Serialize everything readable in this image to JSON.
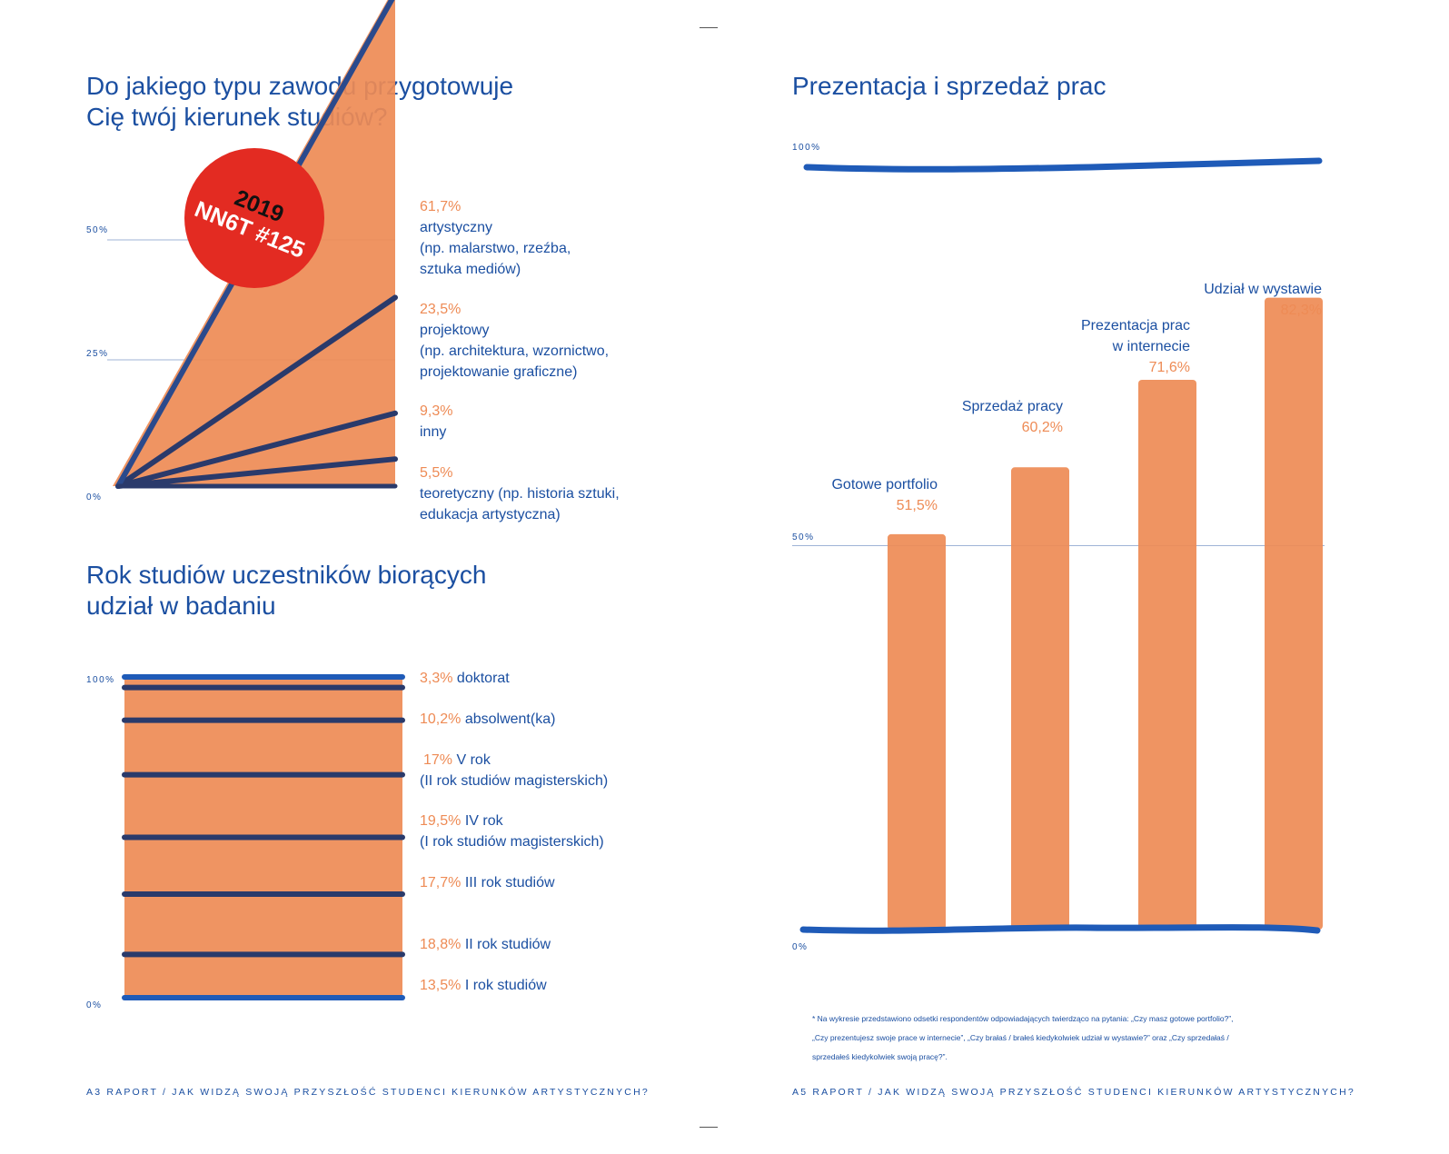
{
  "left_page": {
    "chart1": {
      "title_line1": "Do jakiego typu zawodu przygotowuje",
      "title_line2": "Cię twój kierunek studiów?",
      "axis": [
        "50%",
        "25%",
        "0%"
      ],
      "stamp_line1": "2019",
      "stamp_line2": "NN6T #125",
      "legend": [
        {
          "pct": "61,7%",
          "lines": [
            "artystyczny",
            "(np. malarstwo, rzeźba,",
            "sztuka mediów)"
          ]
        },
        {
          "pct": "23,5%",
          "lines": [
            "projektowy",
            "(np. architektura, wzornictwo,",
            "projektowanie graficzne)"
          ]
        },
        {
          "pct": "9,3%",
          "lines": [
            "inny"
          ]
        },
        {
          "pct": "5,5%",
          "lines": [
            "teoretyczny (np. historia sztuki,",
            "edukacja artystyczna)"
          ]
        }
      ]
    },
    "chart2": {
      "title_line1": "Rok studiów uczestników biorących",
      "title_line2": "udział w badaniu",
      "axis": [
        "100%",
        "0%"
      ],
      "legend": [
        {
          "pct": "3,3%",
          "lines": [
            "doktorat"
          ]
        },
        {
          "pct": "10,2%",
          "lines": [
            "absolwent(ka)"
          ]
        },
        {
          "pct": "17%",
          "lines": [
            "V rok",
            "(II rok studiów magisterskich)"
          ]
        },
        {
          "pct": "19,5%",
          "lines": [
            "IV rok",
            "(I rok studiów magisterskich)"
          ]
        },
        {
          "pct": "17,7%",
          "lines": [
            "III rok studiów"
          ]
        },
        {
          "pct": "18,8%",
          "lines": [
            "II rok studiów"
          ]
        },
        {
          "pct": "13,5%",
          "lines": [
            "I rok studiów"
          ]
        }
      ]
    },
    "footer": "A3 RAPORT / JAK WIDZĄ SWOJĄ PRZYSZŁOŚĆ STUDENCI KIERUNKÓW ARTYSTYCZNYCH?"
  },
  "right_page": {
    "chart3": {
      "title": "Prezentacja i sprzedaż prac",
      "axis": [
        "100%",
        "50%",
        "0%"
      ],
      "bars": [
        {
          "label_lines": [
            "Gotowe portfolio"
          ],
          "pct": "51,5%"
        },
        {
          "label_lines": [
            "Sprzedaż pracy"
          ],
          "pct": "60,2%"
        },
        {
          "label_lines": [
            "Prezentacja prac",
            "w internecie"
          ],
          "pct": "71,6%"
        },
        {
          "label_lines": [
            "Udział w wystawie"
          ],
          "pct": "82,3%"
        }
      ]
    },
    "note_lines": [
      "* Na wykresie przedstawiono odsetki respondentów odpowiadających twierdząco na pytania: „Czy masz gotowe portfolio?”,",
      "„Czy prezentujesz swoje prace w internecie”, „Czy brałaś / brałeś kiedykolwiek udział w wystawie?” oraz „Czy sprzedałaś /",
      "sprzedałeś kiedykolwiek swoją pracę?”."
    ],
    "footer": "A5 RAPORT / JAK WIDZĄ SWOJĄ PRZYSZŁOŚĆ STUDENCI KIERUNKÓW ARTYSTYCZNYCH?"
  },
  "chart_data": [
    {
      "type": "area",
      "title": "Do jakiego typu zawodu przygotowuje Cię twój kierunek studiów?",
      "categories": [
        "artystyczny",
        "projektowy",
        "inny",
        "teoretyczny"
      ],
      "values": [
        61.7,
        23.5,
        9.3,
        5.5
      ],
      "ylim": [
        0,
        50
      ],
      "yticks": [
        "0%",
        "25%",
        "50%"
      ]
    },
    {
      "type": "bar",
      "stacked": true,
      "title": "Rok studiów uczestników biorących udział w badaniu",
      "categories": [
        "I rok studiów",
        "II rok studiów",
        "III rok studiów",
        "IV rok",
        "V rok",
        "absolwent(ka)",
        "doktorat"
      ],
      "values": [
        13.5,
        18.8,
        17.7,
        19.5,
        17,
        10.2,
        3.3
      ],
      "ylim": [
        0,
        100
      ],
      "yticks": [
        "0%",
        "100%"
      ]
    },
    {
      "type": "bar",
      "title": "Prezentacja i sprzedaż prac",
      "categories": [
        "Gotowe portfolio",
        "Sprzedaż pracy",
        "Prezentacja prac w internecie",
        "Udział w wystawie"
      ],
      "values": [
        51.5,
        60.2,
        71.6,
        82.3
      ],
      "ylim": [
        0,
        100
      ],
      "yticks": [
        "0%",
        "50%",
        "100%"
      ]
    }
  ],
  "colors": {
    "blue": "#1b4fa1",
    "navy": "#2a3a6b",
    "orange": "#ee8b55",
    "stamp_red": "#e32b22"
  }
}
